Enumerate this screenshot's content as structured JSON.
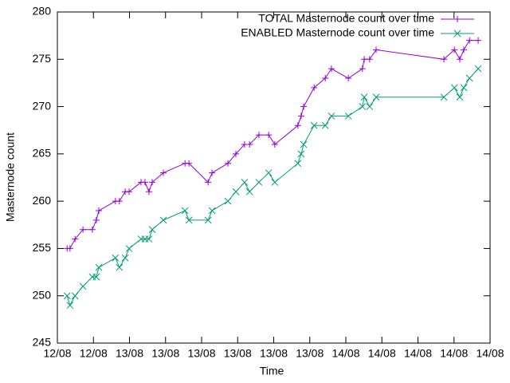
{
  "chart_data": {
    "type": "line",
    "title_none": null,
    "xlabel": "Time",
    "ylabel": "Masternode count",
    "x": [
      0.27,
      0.35,
      0.49,
      0.71,
      0.97,
      1.08,
      1.15,
      1.61,
      1.72,
      1.88,
      1.99,
      2.32,
      2.43,
      2.54,
      2.63,
      2.94,
      3.54,
      3.65,
      4.18,
      4.29,
      4.73,
      4.95,
      5.19,
      5.33,
      5.59,
      5.86,
      6.03,
      6.67,
      6.76,
      6.83,
      7.12,
      7.43,
      7.6,
      8.07,
      8.46,
      8.51,
      8.66,
      8.84,
      10.72,
      11.01,
      11.16,
      11.27,
      11.43,
      11.67
    ],
    "series": [
      {
        "name": "TOTAL Masternode count over time",
        "color": "#9400d3",
        "marker": "plus",
        "values": [
          255,
          255,
          256,
          257,
          257,
          258,
          259,
          260,
          260,
          261,
          261,
          262,
          262,
          261,
          262,
          263,
          264,
          264,
          262,
          263,
          264,
          265,
          266,
          266,
          267,
          267,
          266,
          268,
          269,
          270,
          272,
          273,
          274,
          273,
          274,
          275,
          275,
          276,
          275,
          276,
          275,
          276,
          277,
          277
        ]
      },
      {
        "name": "ENABLED Masternode count over time",
        "color": "#009e73",
        "marker": "cross",
        "values": [
          250,
          249,
          250,
          251,
          252,
          252,
          253,
          254,
          253,
          254,
          255,
          256,
          256,
          256,
          257,
          258,
          259,
          258,
          258,
          259,
          260,
          261,
          262,
          261,
          262,
          263,
          262,
          264,
          265,
          266,
          268,
          268,
          269,
          269,
          270,
          271,
          270,
          271,
          271,
          272,
          271,
          272,
          273,
          274
        ]
      }
    ],
    "xlim": [
      0,
      12
    ],
    "xticks": [
      {
        "value": 0,
        "label": "12/08"
      },
      {
        "value": 1,
        "label": "12/08"
      },
      {
        "value": 2,
        "label": "13/08"
      },
      {
        "value": 3,
        "label": "13/08"
      },
      {
        "value": 4,
        "label": "13/08"
      },
      {
        "value": 5,
        "label": "13/08"
      },
      {
        "value": 6,
        "label": "13/08"
      },
      {
        "value": 7,
        "label": "13/08"
      },
      {
        "value": 8,
        "label": "14/08"
      },
      {
        "value": 9,
        "label": "14/08"
      },
      {
        "value": 10,
        "label": "14/08"
      },
      {
        "value": 11,
        "label": "14/08"
      },
      {
        "value": 12,
        "label": "14/08"
      }
    ],
    "ylim": [
      245,
      280
    ],
    "yticks": [
      245,
      250,
      255,
      260,
      265,
      270,
      275,
      280
    ],
    "legend": "top-right"
  }
}
